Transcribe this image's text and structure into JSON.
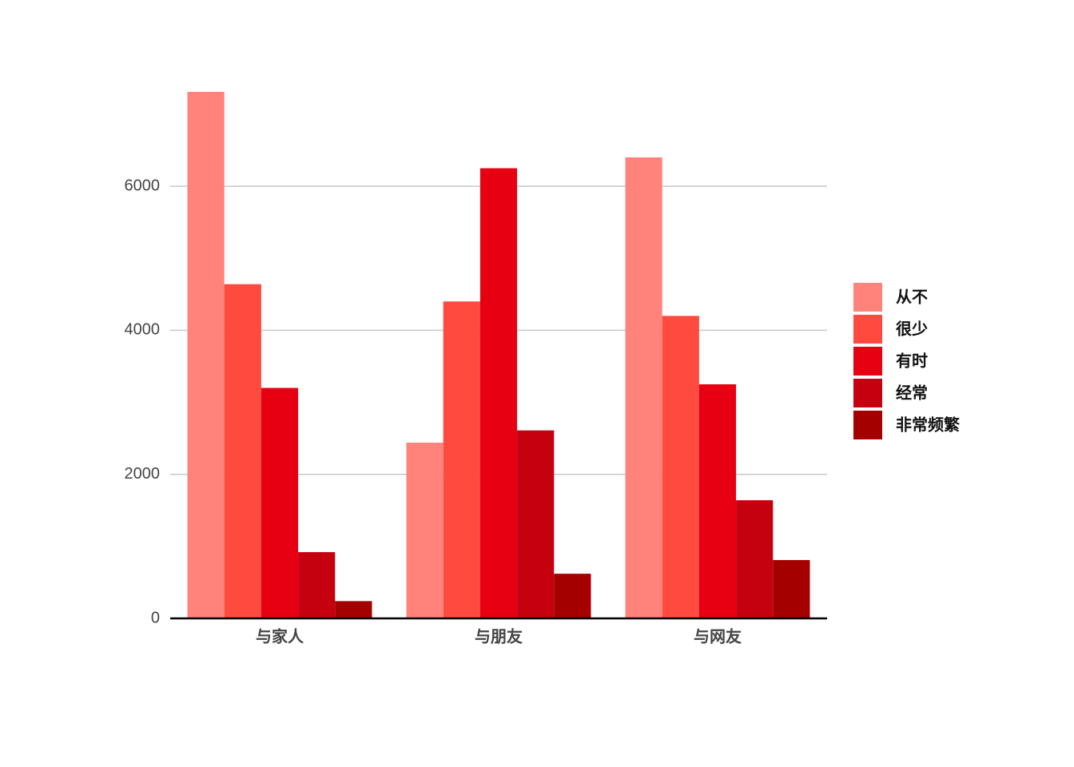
{
  "chart_data": {
    "type": "bar",
    "categories": [
      "与家人",
      "与朋友",
      "与网友"
    ],
    "series": [
      {
        "name": "从不",
        "color": "#ff837a",
        "values": [
          7310,
          2440,
          6400
        ]
      },
      {
        "name": "很少",
        "color": "#ff4a40",
        "values": [
          4640,
          4400,
          4200
        ]
      },
      {
        "name": "有时",
        "color": "#e60012",
        "values": [
          3200,
          6250,
          3250
        ]
      },
      {
        "name": "经常",
        "color": "#c5000f",
        "values": [
          920,
          2610,
          1640
        ]
      },
      {
        "name": "非常频繁",
        "color": "#a50000",
        "values": [
          240,
          620,
          810
        ]
      }
    ],
    "ylim": [
      0,
      8000
    ],
    "yticks": [
      0,
      2000,
      4000,
      6000
    ],
    "grid": true,
    "legend": "right"
  }
}
